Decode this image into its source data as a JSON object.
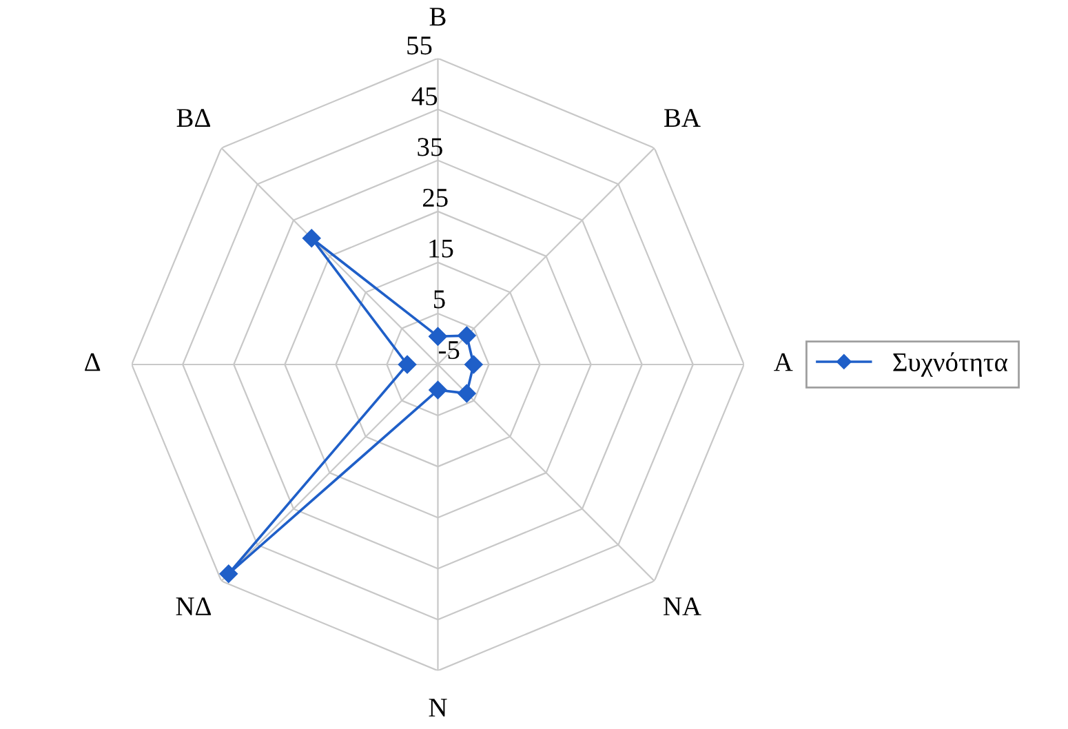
{
  "chart_data": {
    "type": "radar",
    "categories": [
      "B",
      "BA",
      "A",
      "NA",
      "N",
      "NΔ",
      "Δ",
      "BΔ"
    ],
    "series": [
      {
        "name": "Συχνότητα",
        "color": "#1f5fc8",
        "values": [
          0.5,
          3,
          2,
          3,
          0,
          53,
          1,
          30
        ]
      }
    ],
    "ylim": [
      -5,
      55
    ],
    "yticks": [
      -5,
      5,
      15,
      25,
      35,
      45,
      55
    ],
    "grid": true,
    "legend": "right",
    "marker": "diamond",
    "line_style": "solid"
  }
}
